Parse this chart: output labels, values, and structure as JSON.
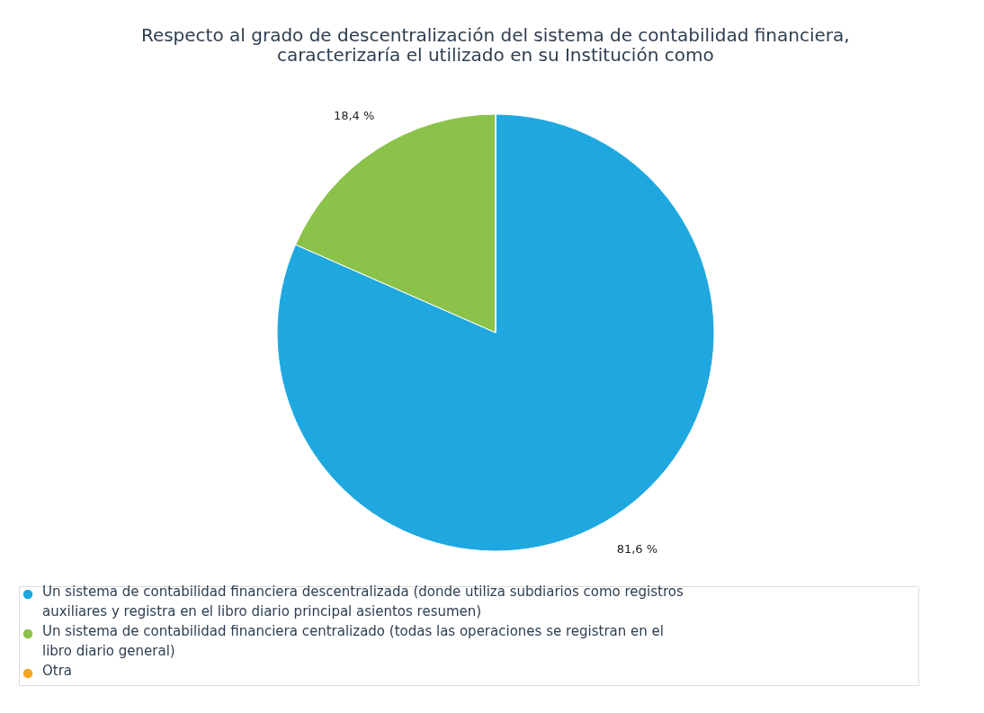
{
  "chart_data": {
    "type": "pie",
    "title": [
      "Respecto al grado de descentralización del sistema de contabilidad financiera,",
      "caracterizaría el utilizado en su Institución como"
    ],
    "categories": [
      "Un sistema de contabilidad financiera descentralizada (donde utiliza subdiarios como registros auxiliares y registra en el libro diario principal asientos resumen)",
      "Un sistema de contabilidad financiera centralizado (todas las operaciones se registran en el libro diario general)",
      "Otra"
    ],
    "values": [
      81.6,
      18.4,
      0
    ],
    "colors": [
      "#1fa8e0",
      "#8bc34a",
      "#f5a623"
    ],
    "value_labels": [
      "81,6 %",
      "18,4 %",
      null
    ],
    "legend": "bottom"
  }
}
